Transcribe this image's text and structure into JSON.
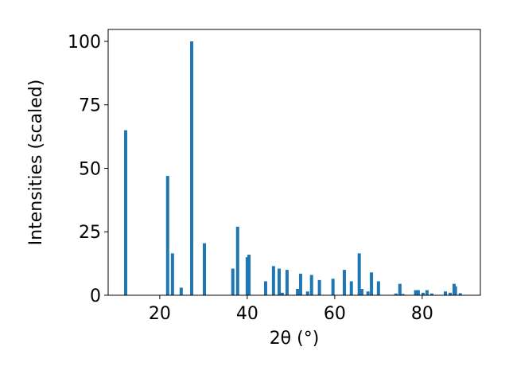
{
  "chart_data": {
    "type": "bar",
    "xlabel": "2θ (°)",
    "ylabel": "Intensities (scaled)",
    "x": [
      12.2,
      21.8,
      22.9,
      24.9,
      27.3,
      30.2,
      36.7,
      37.8,
      40.0,
      40.4,
      44.2,
      46.0,
      47.3,
      48.0,
      49.1,
      51.5,
      52.2,
      53.8,
      54.7,
      56.5,
      59.6,
      62.2,
      63.8,
      65.6,
      66.2,
      67.6,
      68.4,
      70.0,
      74.0,
      74.9,
      75.6,
      78.5,
      79.1,
      80.2,
      81.1,
      82.2,
      85.3,
      86.4,
      87.3,
      87.6,
      88.7
    ],
    "values": [
      65,
      47,
      16.5,
      3,
      100,
      20.5,
      10.5,
      27,
      15,
      16,
      5.5,
      11.5,
      10.5,
      1,
      10,
      2.5,
      8.5,
      1.5,
      8,
      6,
      6.5,
      10,
      5.5,
      16.5,
      2.5,
      1.5,
      9,
      5.5,
      0.7,
      4.5,
      0.5,
      2,
      2,
      1,
      2,
      0.7,
      1.5,
      1,
      4.5,
      3.5,
      0.8
    ],
    "color": "#1f77b4",
    "xlim": [
      8.2,
      93.3
    ],
    "xticks": [
      20,
      40,
      60,
      80
    ],
    "ylim": [
      0,
      104.7
    ],
    "yticks": [
      0,
      25,
      50,
      75,
      100
    ]
  }
}
